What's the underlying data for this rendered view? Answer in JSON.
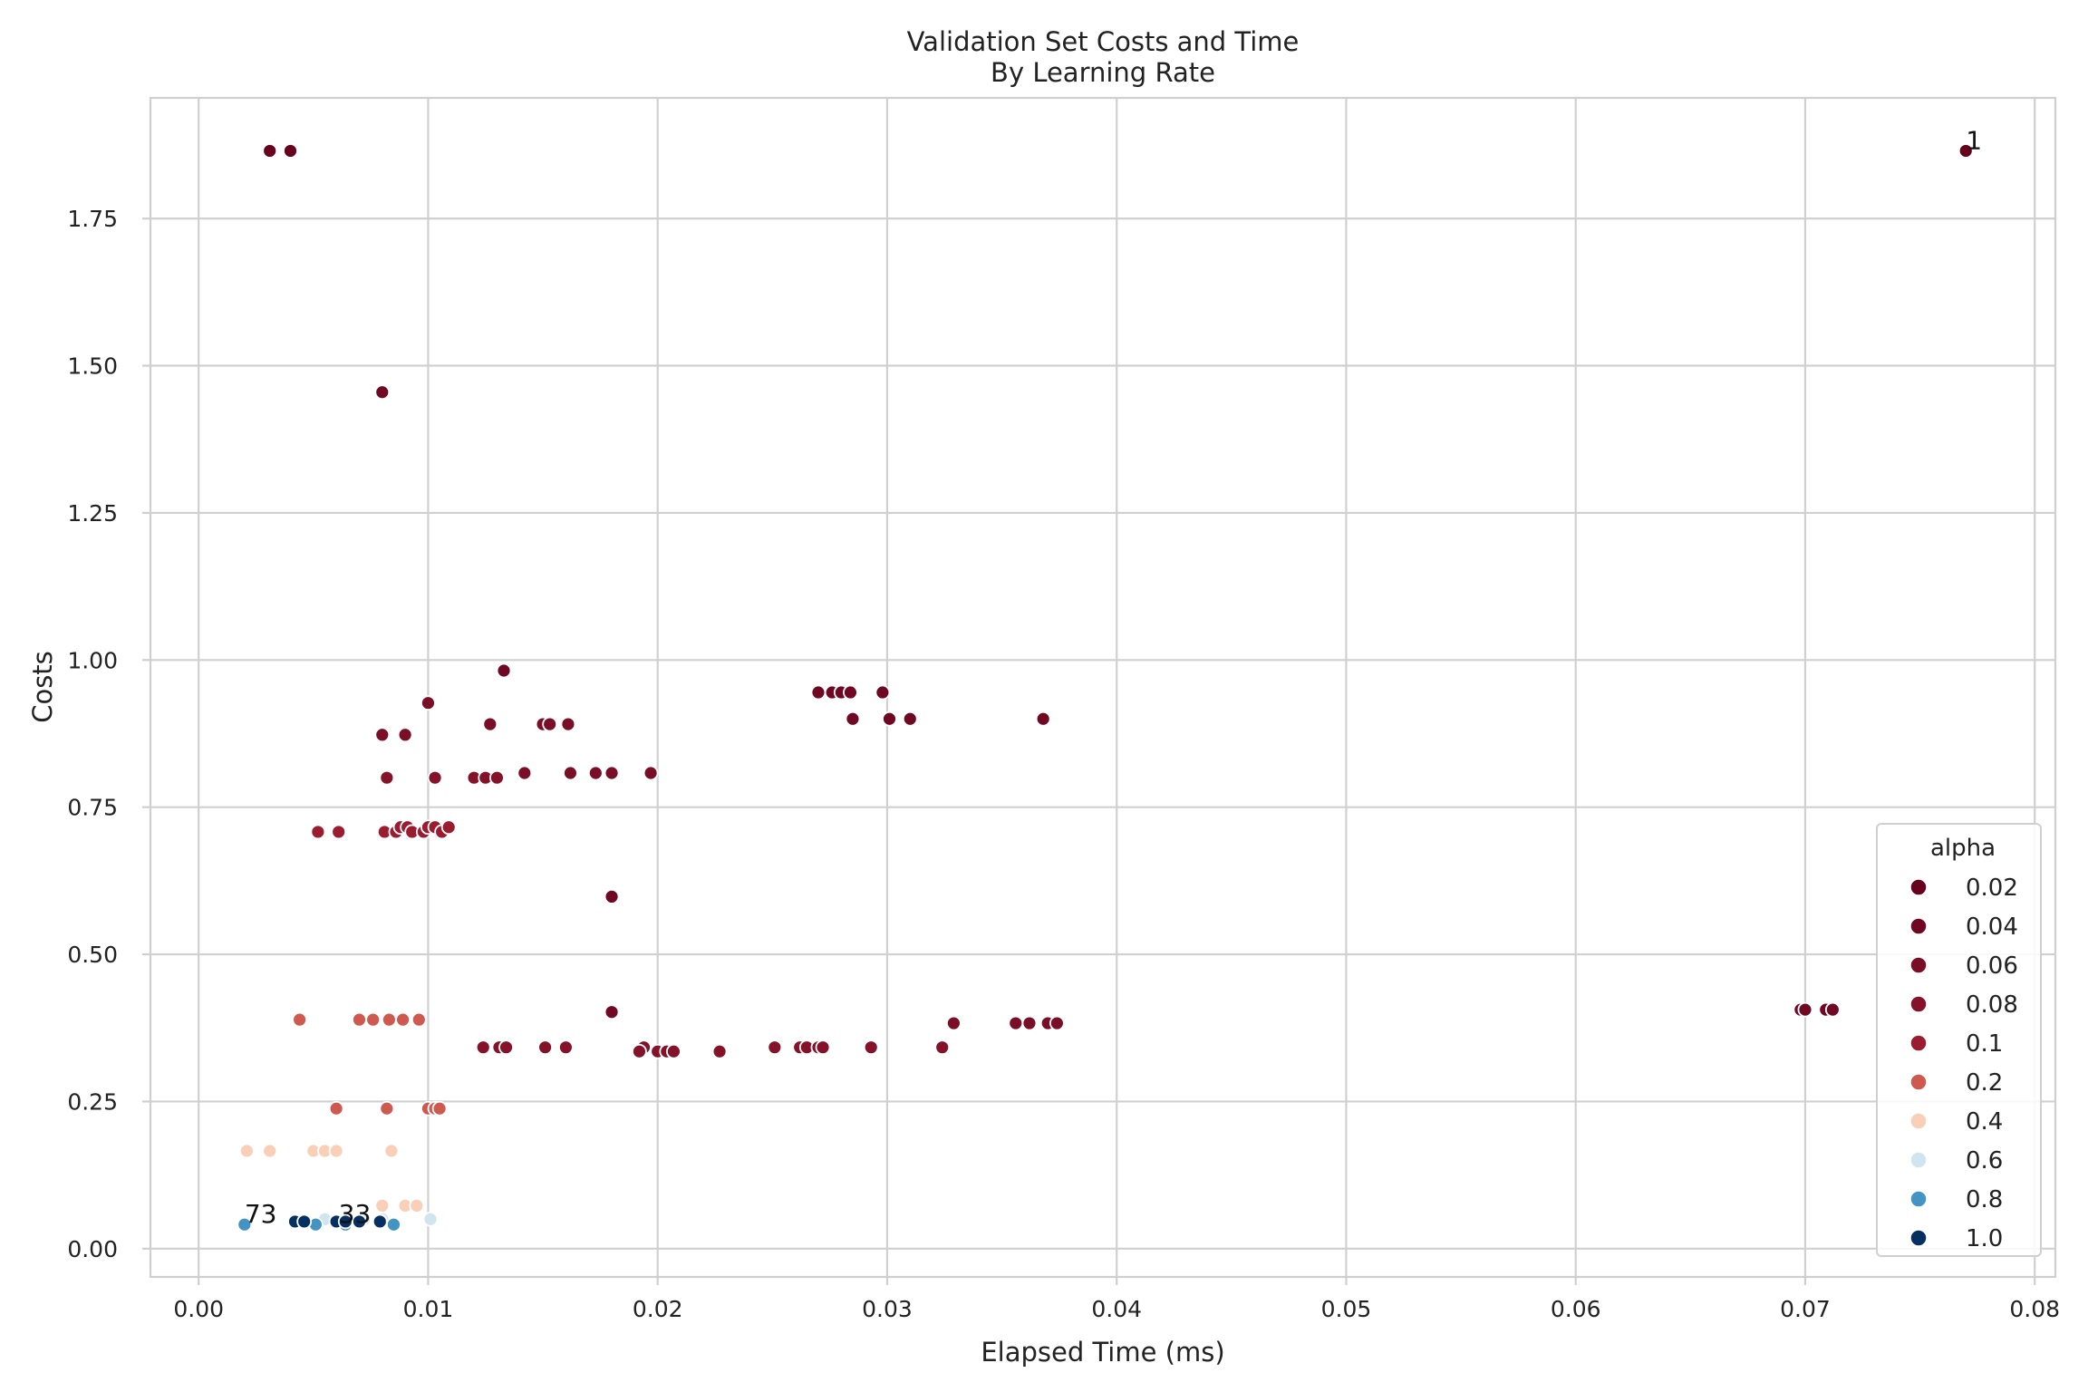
{
  "chart_data": {
    "type": "scatter",
    "title": "Validation Set Costs and Time",
    "subtitle": "By Learning Rate",
    "xlabel": "Elapsed Time (ms)",
    "ylabel": "Costs",
    "xlim": [
      -0.0021,
      0.0809
    ],
    "ylim": [
      -0.048,
      1.955
    ],
    "xticks": [
      "0.00",
      "0.01",
      "0.02",
      "0.03",
      "0.04",
      "0.05",
      "0.06",
      "0.07",
      "0.08"
    ],
    "xtick_values": [
      0,
      0.01,
      0.02,
      0.03,
      0.04,
      0.05,
      0.06,
      0.07,
      0.08
    ],
    "yticks": [
      "0.00",
      "0.25",
      "0.50",
      "0.75",
      "1.00",
      "1.25",
      "1.50",
      "1.75"
    ],
    "ytick_values": [
      0,
      0.25,
      0.5,
      0.75,
      1.0,
      1.25,
      1.5,
      1.75
    ],
    "grid": true,
    "legend": {
      "title": "alpha",
      "placement": "lower-right"
    },
    "series": [
      {
        "name": "0.02",
        "color": "#67001f",
        "points": [
          [
            0.0031,
            1.865
          ],
          [
            0.004,
            1.865
          ],
          [
            0.077,
            1.865
          ]
        ]
      },
      {
        "name": "0.04",
        "color": "#700723",
        "points": [
          [
            0.008,
            1.455
          ],
          [
            0.027,
            0.945
          ],
          [
            0.0276,
            0.945
          ],
          [
            0.028,
            0.945
          ],
          [
            0.0284,
            0.945
          ],
          [
            0.0298,
            0.945
          ],
          [
            0.0285,
            0.9
          ],
          [
            0.0301,
            0.9
          ],
          [
            0.031,
            0.9
          ],
          [
            0.0368,
            0.9
          ],
          [
            0.0133,
            0.982
          ],
          [
            0.018,
            0.598
          ],
          [
            0.018,
            0.402
          ],
          [
            0.0698,
            0.406
          ],
          [
            0.07,
            0.406
          ],
          [
            0.0709,
            0.406
          ],
          [
            0.0712,
            0.406
          ]
        ]
      },
      {
        "name": "0.06",
        "color": "#7a0e26",
        "points": [
          [
            0.01,
            0.927
          ],
          [
            0.0127,
            0.891
          ],
          [
            0.015,
            0.891
          ],
          [
            0.0153,
            0.891
          ],
          [
            0.0161,
            0.891
          ],
          [
            0.008,
            0.873
          ],
          [
            0.009,
            0.873
          ],
          [
            0.0142,
            0.808
          ],
          [
            0.0162,
            0.808
          ],
          [
            0.0173,
            0.808
          ],
          [
            0.018,
            0.808
          ],
          [
            0.0197,
            0.808
          ],
          [
            0.0329,
            0.383
          ],
          [
            0.0356,
            0.383
          ],
          [
            0.0362,
            0.383
          ],
          [
            0.037,
            0.383
          ],
          [
            0.0374,
            0.383
          ]
        ]
      },
      {
        "name": "0.08",
        "color": "#84132a",
        "points": [
          [
            0.0082,
            0.8
          ],
          [
            0.0103,
            0.8
          ],
          [
            0.012,
            0.8
          ],
          [
            0.0125,
            0.8
          ],
          [
            0.013,
            0.8
          ],
          [
            0.0124,
            0.342
          ],
          [
            0.0131,
            0.342
          ],
          [
            0.0134,
            0.342
          ],
          [
            0.0151,
            0.342
          ],
          [
            0.016,
            0.342
          ],
          [
            0.0194,
            0.342
          ],
          [
            0.0251,
            0.342
          ],
          [
            0.0262,
            0.342
          ],
          [
            0.0265,
            0.342
          ],
          [
            0.027,
            0.342
          ],
          [
            0.0272,
            0.342
          ],
          [
            0.0293,
            0.342
          ],
          [
            0.0324,
            0.342
          ],
          [
            0.0192,
            0.335
          ],
          [
            0.02,
            0.335
          ],
          [
            0.0204,
            0.335
          ],
          [
            0.0207,
            0.335
          ],
          [
            0.0227,
            0.335
          ]
        ]
      },
      {
        "name": "0.1",
        "color": "#9c1c2f",
        "points": [
          [
            0.0052,
            0.708
          ],
          [
            0.0061,
            0.708
          ],
          [
            0.0081,
            0.708
          ],
          [
            0.0086,
            0.708
          ],
          [
            0.0088,
            0.716
          ],
          [
            0.0091,
            0.716
          ],
          [
            0.0093,
            0.708
          ],
          [
            0.0098,
            0.708
          ],
          [
            0.01,
            0.716
          ],
          [
            0.0103,
            0.716
          ],
          [
            0.0106,
            0.708
          ],
          [
            0.0109,
            0.716
          ]
        ]
      },
      {
        "name": "0.2",
        "color": "#ce5a4f",
        "points": [
          [
            0.0044,
            0.389
          ],
          [
            0.007,
            0.389
          ],
          [
            0.0076,
            0.389
          ],
          [
            0.0083,
            0.389
          ],
          [
            0.0089,
            0.389
          ],
          [
            0.0096,
            0.389
          ],
          [
            0.006,
            0.238
          ],
          [
            0.0082,
            0.238
          ],
          [
            0.01,
            0.238
          ],
          [
            0.0103,
            0.238
          ],
          [
            0.0105,
            0.238
          ]
        ]
      },
      {
        "name": "0.4",
        "color": "#f9cfb8",
        "points": [
          [
            0.0021,
            0.166
          ],
          [
            0.0031,
            0.166
          ],
          [
            0.005,
            0.166
          ],
          [
            0.0055,
            0.166
          ],
          [
            0.006,
            0.166
          ],
          [
            0.0084,
            0.166
          ],
          [
            0.008,
            0.073
          ],
          [
            0.009,
            0.073
          ],
          [
            0.0095,
            0.073
          ]
        ]
      },
      {
        "name": "0.6",
        "color": "#d1e5f0",
        "points": [
          [
            0.0055,
            0.05
          ],
          [
            0.0072,
            0.05
          ],
          [
            0.008,
            0.05
          ],
          [
            0.0101,
            0.05
          ]
        ]
      },
      {
        "name": "0.8",
        "color": "#4393c3",
        "points": [
          [
            0.002,
            0.041
          ],
          [
            0.0051,
            0.041
          ],
          [
            0.0064,
            0.041
          ],
          [
            0.0085,
            0.041
          ]
        ]
      },
      {
        "name": "1.0",
        "color": "#053061",
        "points": [
          [
            0.0042,
            0.046
          ],
          [
            0.0046,
            0.046
          ],
          [
            0.006,
            0.046
          ],
          [
            0.0064,
            0.046
          ],
          [
            0.007,
            0.046
          ],
          [
            0.0079,
            0.046
          ]
        ]
      }
    ],
    "annotations": [
      {
        "text": "1",
        "x": 0.077,
        "y": 1.865
      },
      {
        "text": "73",
        "x": 0.002,
        "y": 0.041
      },
      {
        "text": "33",
        "x": 0.0061,
        "y": 0.041
      }
    ]
  }
}
